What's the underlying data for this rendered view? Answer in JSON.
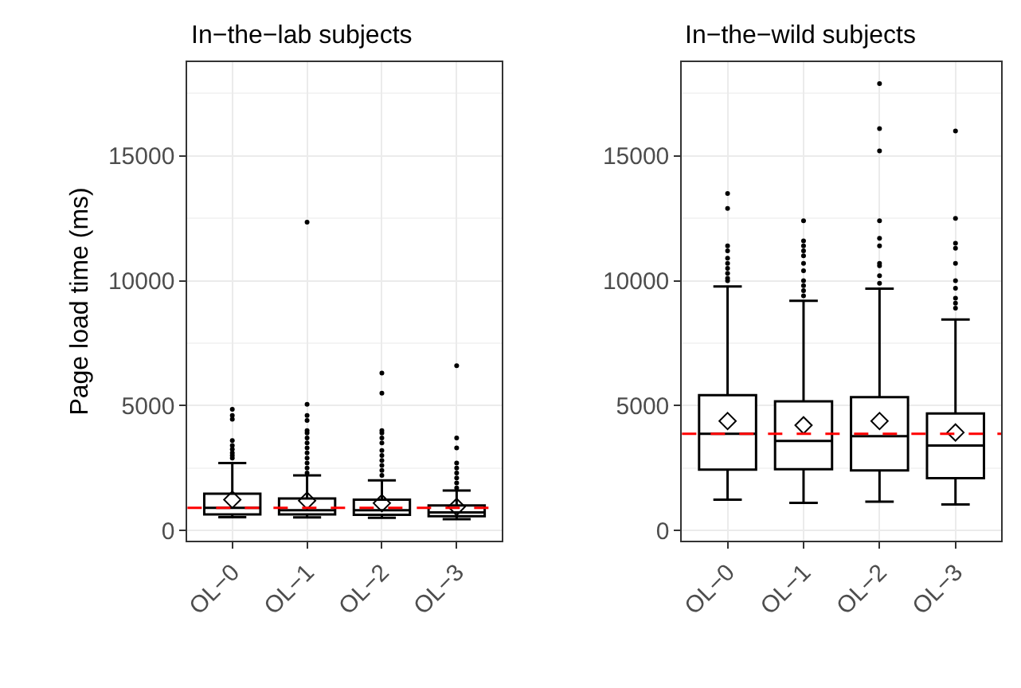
{
  "chart_data": [
    {
      "type": "box",
      "title": "In−the−lab subjects",
      "ylabel": "Page load time (ms)",
      "categories": [
        "OL−0",
        "OL−1",
        "OL−2",
        "OL−3"
      ],
      "boxes": [
        {
          "low": 530,
          "q1": 640,
          "median": 905,
          "q3": 1470,
          "high": 2700,
          "mean": 1230,
          "outliers": [
            4850,
            4600,
            4450,
            3600,
            3400,
            3250,
            3100,
            3000,
            2900
          ]
        },
        {
          "low": 520,
          "q1": 640,
          "median": 810,
          "q3": 1280,
          "high": 2200,
          "mean": 1190,
          "outliers": [
            12350,
            5050,
            4600,
            4400,
            4000,
            3900,
            3700,
            3500,
            3300,
            3100,
            2900,
            2700,
            2500,
            2300
          ]
        },
        {
          "low": 500,
          "q1": 620,
          "median": 810,
          "q3": 1230,
          "high": 2000,
          "mean": 1090,
          "outliers": [
            6300,
            5500,
            4000,
            3900,
            3700,
            3500,
            3200,
            3000,
            2800,
            2600,
            2400,
            2200
          ]
        },
        {
          "low": 450,
          "q1": 570,
          "median": 720,
          "q3": 1000,
          "high": 1600,
          "mean": 940,
          "outliers": [
            6600,
            3700,
            3300,
            2700,
            2500,
            2300,
            2100,
            1900,
            1700
          ]
        }
      ],
      "ylim": [
        -420,
        18770
      ],
      "yticks": [
        0,
        5000,
        10000,
        15000
      ],
      "grid": true,
      "ref_lines": [
        {
          "axis": "y",
          "value": 900,
          "color": "#ff0000",
          "line_style": "dashed"
        }
      ]
    },
    {
      "type": "box",
      "title": "In−the−wild subjects",
      "categories": [
        "OL−0",
        "OL−1",
        "OL−2",
        "OL−3"
      ],
      "boxes": [
        {
          "low": 1230,
          "q1": 2430,
          "median": 3870,
          "q3": 5420,
          "high": 9770,
          "mean": 4380,
          "outliers": [
            13500,
            12900,
            11400,
            11200,
            10900,
            10700,
            10500,
            10300,
            10100,
            10000
          ]
        },
        {
          "low": 1100,
          "q1": 2450,
          "median": 3580,
          "q3": 5170,
          "high": 9200,
          "mean": 4210,
          "outliers": [
            12400,
            11600,
            11400,
            11200,
            11000,
            10700,
            10400,
            10000,
            9800,
            9600,
            9400
          ]
        },
        {
          "low": 1150,
          "q1": 2400,
          "median": 3770,
          "q3": 5340,
          "high": 9680,
          "mean": 4380,
          "outliers": [
            17900,
            16100,
            15200,
            12400,
            11700,
            11400,
            10700,
            10600,
            10200,
            9900
          ]
        },
        {
          "low": 1040,
          "q1": 2090,
          "median": 3400,
          "q3": 4680,
          "high": 8450,
          "mean": 3920,
          "outliers": [
            16000,
            12500,
            11500,
            11300,
            10700,
            10000,
            9700,
            9300,
            9100,
            8900
          ]
        }
      ],
      "ylim": [
        -420,
        18770
      ],
      "yticks": [
        0,
        5000,
        10000,
        15000
      ],
      "grid": true,
      "ref_lines": [
        {
          "axis": "y",
          "value": 3870,
          "color": "#ff0000",
          "line_style": "dashed"
        }
      ]
    }
  ]
}
